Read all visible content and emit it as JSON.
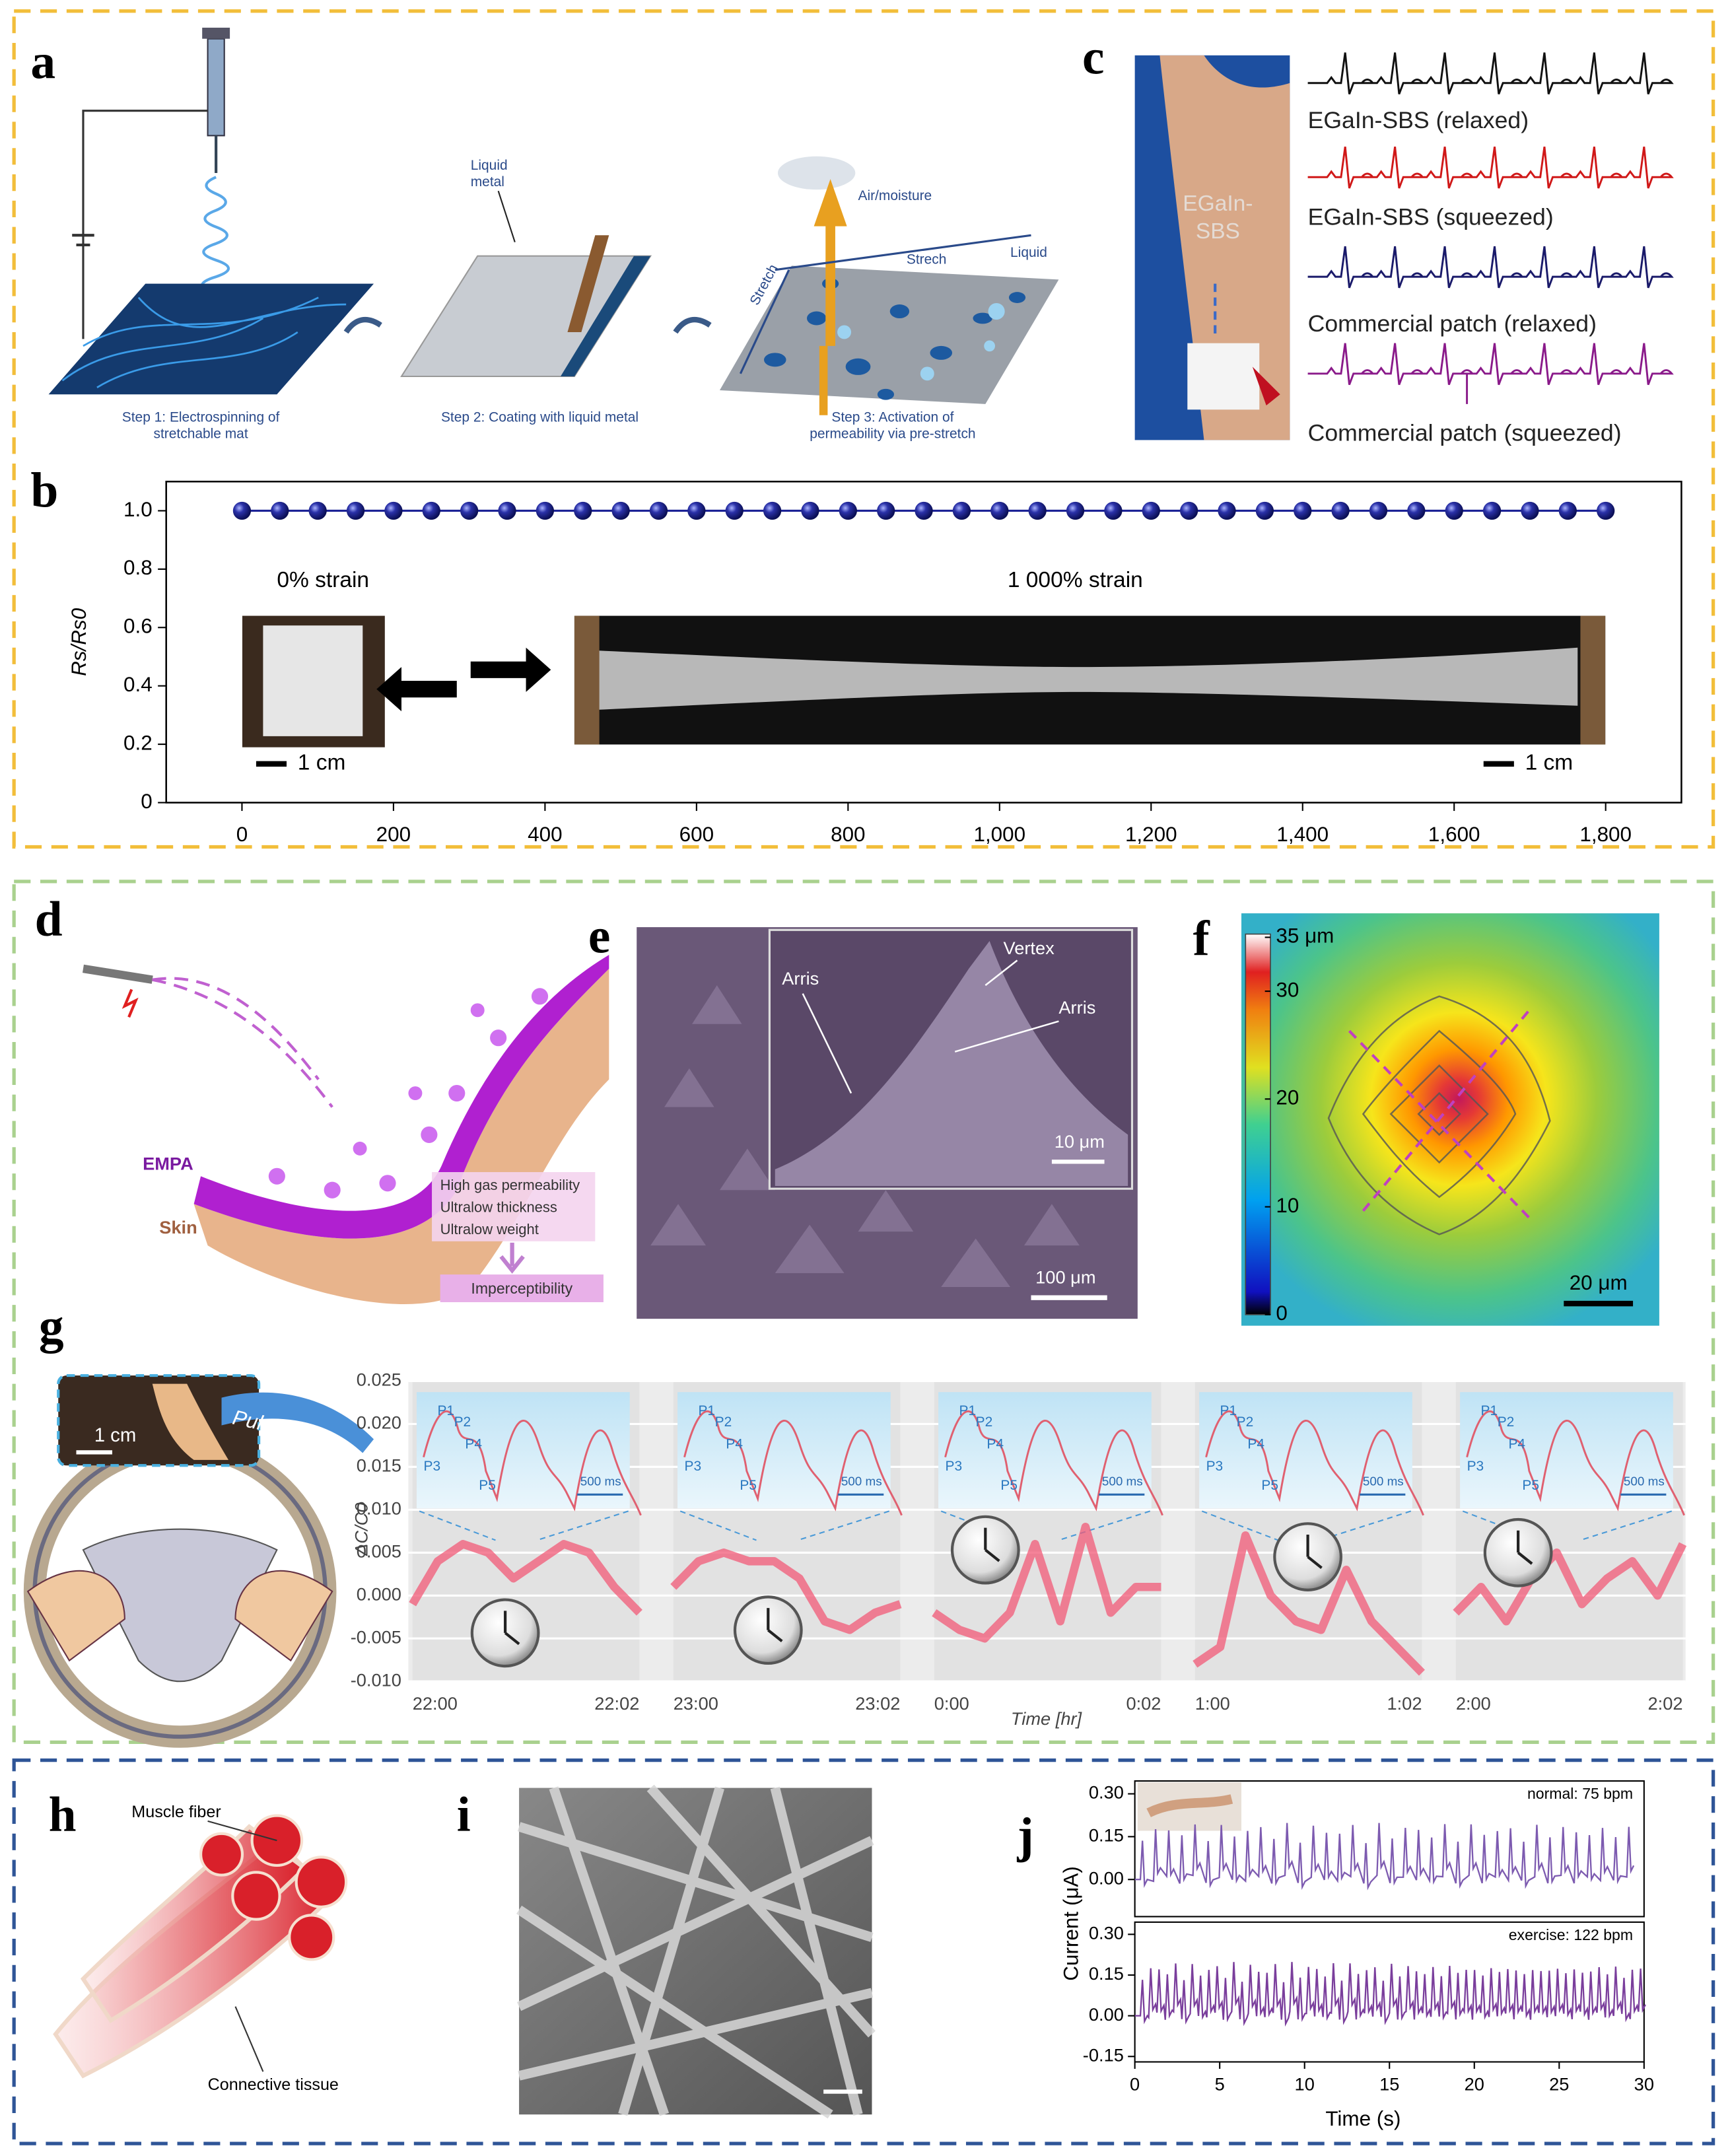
{
  "panels": {
    "a": {
      "label": "a",
      "step1": [
        "Step 1: Electrospinning of",
        "stretchable mat"
      ],
      "step2": "Step 2: Coating with liquid metal",
      "step3": [
        "Step 3: Activation of",
        "permeability via pre-stretch"
      ],
      "liquid_metal": [
        "Liquid",
        "metal"
      ],
      "air": "Air/moisture",
      "stretch_top": "Strech",
      "stretch_side": "Stretch",
      "liquid": "Liquid"
    },
    "c": {
      "label": "c",
      "photo_label": [
        "EGaIn-",
        "SBS"
      ],
      "traces": [
        "EGaIn-SBS (relaxed)",
        "EGaIn-SBS (squeezed)",
        "Commercial patch (relaxed)",
        "Commercial patch (squeezed)"
      ]
    },
    "d": {
      "label": "d",
      "empa": "EMPA",
      "skin": "Skin",
      "bullets": [
        "High gas permeability",
        "Ultralow thickness",
        "Ultralow weight"
      ],
      "result": "Imperceptibility"
    },
    "e": {
      "label": "e",
      "arris": [
        "Arris",
        "Arris"
      ],
      "vertex": "Vertex",
      "inset_scale": "10 μm",
      "scale": "100 μm"
    },
    "f": {
      "label": "f",
      "colorbar": {
        "lim": [
          0,
          35.3
        ],
        "ticks": [
          {
            "value": 35,
            "label": "35 μm"
          },
          30,
          20,
          10,
          0
        ]
      },
      "scale": "20 μm"
    },
    "h": {
      "label": "h",
      "fiber": "Muscle fiber",
      "tissue": "Connective tissue"
    },
    "i": {
      "label": "i"
    }
  },
  "chart_data": [
    {
      "label": "b",
      "type": "line",
      "ylabel": "Rs/Rs0",
      "color": "#1c2396",
      "x": [
        0,
        50,
        100,
        150,
        200,
        250,
        300,
        350,
        400,
        450,
        500,
        550,
        600,
        650,
        700,
        750,
        800,
        850,
        900,
        950,
        1000,
        1050,
        1100,
        1150,
        1200,
        1250,
        1300,
        1350,
        1400,
        1450,
        1500,
        1550,
        1600,
        1650,
        1700,
        1750,
        1800
      ],
      "values": [
        1,
        1,
        1,
        1,
        1,
        1,
        1,
        1,
        1,
        1,
        1,
        1,
        1,
        1,
        1,
        1,
        1,
        1,
        1,
        1,
        1,
        1,
        1,
        1,
        1,
        1,
        1,
        1,
        1,
        1,
        1,
        1,
        1,
        1,
        1,
        1,
        1
      ],
      "xlim": [
        -100,
        1900
      ],
      "ylim": [
        0,
        1.1
      ],
      "xticks": [
        0,
        200,
        400,
        600,
        800,
        {
          "value": 1000,
          "label": "1,000"
        },
        {
          "value": 1200,
          "label": "1,200"
        },
        {
          "value": 1400,
          "label": "1,400"
        },
        {
          "value": 1600,
          "label": "1,600"
        },
        {
          "value": 1800,
          "label": "1,800"
        }
      ],
      "yticks": [
        0,
        0.2,
        0.4,
        0.6,
        0.8,
        {
          "value": 1,
          "label": "1.0"
        }
      ],
      "annotations": [
        "0% strain",
        "1 000% strain",
        "1 cm",
        "1 cm"
      ]
    },
    {
      "label": "g",
      "type": "line",
      "ylabel": "ΔC/C0",
      "xlabel": "Time [hr]",
      "color": "#f25a77",
      "ylim": [
        -0.01,
        0.025
      ],
      "yticks": [
        {
          "value": -0.01,
          "label": "-0.010"
        },
        -0.005,
        {
          "value": 0,
          "label": "0.000"
        },
        0.005,
        {
          "value": 0.01,
          "label": "0.010"
        },
        0.015,
        {
          "value": 0.02,
          "label": "0.020"
        },
        0.025
      ],
      "segments": [
        {
          "start": "22:00",
          "end": "22:02",
          "values": [
            -0.001,
            0.004,
            0.006,
            0.005,
            0.002,
            0.004,
            0.006,
            0.005,
            0.001,
            -0.002
          ]
        },
        {
          "start": "23:00",
          "end": "23:02",
          "values": [
            0.001,
            0.004,
            0.005,
            0.004,
            0.004,
            0.002,
            -0.003,
            -0.004,
            -0.002,
            -0.001
          ]
        },
        {
          "start": "0:00",
          "end": "0:02",
          "values": [
            -0.002,
            -0.004,
            -0.005,
            -0.002,
            0.006,
            -0.003,
            0.008,
            -0.002,
            0.001,
            0.001
          ]
        },
        {
          "start": "1:00",
          "end": "1:02",
          "values": [
            -0.008,
            -0.006,
            0.007,
            0,
            -0.003,
            -0.004,
            0.003,
            -0.003,
            -0.006,
            -0.009
          ]
        },
        {
          "start": "2:00",
          "end": "2:02",
          "values": [
            -0.002,
            0.001,
            -0.003,
            0.002,
            0.005,
            -0.001,
            0.002,
            0.004,
            0,
            0.006
          ]
        }
      ],
      "annotations": {
        "scale": "1 cm",
        "arrow": "Pulsation",
        "inset_scale": "500 ms",
        "peaks": [
          "P1",
          "P2",
          "P3",
          "P4",
          "P5"
        ]
      }
    },
    {
      "label": "j",
      "type": "line",
      "xlabel": "Time (s)",
      "ylabel": "Current (μA)",
      "xlim": [
        0,
        30
      ],
      "xticks": [
        0,
        5,
        10,
        15,
        20,
        25,
        30
      ],
      "panels": [
        {
          "annotation": "normal: 75 bpm",
          "color": "#7d5bb0",
          "ylim": [
            -0.13,
            0.345
          ],
          "yticks": [
            {
              "value": 0,
              "label": "0.00"
            },
            0.15,
            {
              "value": 0.3,
              "label": "0.30"
            }
          ]
        },
        {
          "annotation": "exercise: 122 bpm",
          "color": "#7a3e9c",
          "ylim": [
            -0.17,
            0.345
          ],
          "yticks": [
            -0.15,
            {
              "value": 0,
              "label": "0.00"
            },
            0.15,
            {
              "value": 0.3,
              "label": "0.30"
            }
          ]
        }
      ]
    }
  ]
}
